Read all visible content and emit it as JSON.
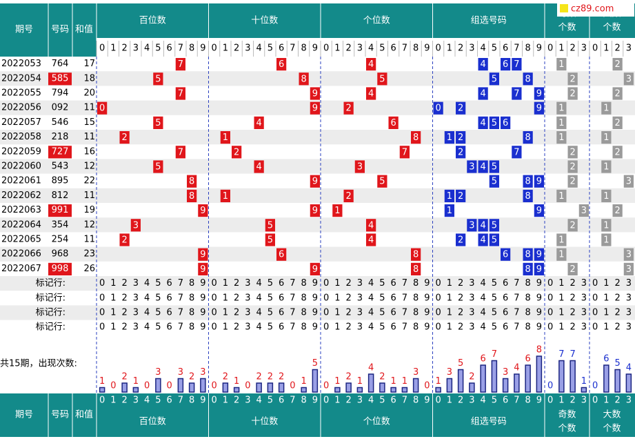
{
  "logo": "cz89.com",
  "header": {
    "issue": "期号",
    "number": "号码",
    "sum": "和值",
    "sections": [
      "百位数",
      "十位数",
      "个位数",
      "组选号码"
    ],
    "small_sections": [
      [
        "奇数",
        "个数"
      ],
      [
        "大数",
        "个数"
      ]
    ]
  },
  "digits": [
    0,
    1,
    2,
    3,
    4,
    5,
    6,
    7,
    8,
    9
  ],
  "digits4": [
    0,
    1,
    2,
    3
  ],
  "rows": [
    {
      "issue": "2022053",
      "number": "764",
      "sum": 17,
      "hundreds": 7,
      "tens": 6,
      "units": 4,
      "group": [
        4,
        6,
        7
      ],
      "odd": 1,
      "big": 2,
      "pair": false
    },
    {
      "issue": "2022054",
      "number": "585",
      "sum": 18,
      "hundreds": 5,
      "tens": 8,
      "units": 5,
      "group": [
        5,
        8
      ],
      "odd": 2,
      "big": 3,
      "pair": true
    },
    {
      "issue": "2022055",
      "number": "794",
      "sum": 20,
      "hundreds": 7,
      "tens": 9,
      "units": 4,
      "group": [
        4,
        7,
        9
      ],
      "odd": 2,
      "big": 2,
      "pair": false
    },
    {
      "issue": "2022056",
      "number": "092",
      "sum": 11,
      "hundreds": 0,
      "tens": 9,
      "units": 2,
      "group": [
        0,
        2,
        9
      ],
      "odd": 1,
      "big": 1,
      "pair": false
    },
    {
      "issue": "2022057",
      "number": "546",
      "sum": 15,
      "hundreds": 5,
      "tens": 4,
      "units": 6,
      "group": [
        4,
        5,
        6
      ],
      "odd": 1,
      "big": 2,
      "pair": false
    },
    {
      "issue": "2022058",
      "number": "218",
      "sum": 11,
      "hundreds": 2,
      "tens": 1,
      "units": 8,
      "group": [
        1,
        2,
        8
      ],
      "odd": 1,
      "big": 1,
      "pair": false
    },
    {
      "issue": "2022059",
      "number": "727",
      "sum": 16,
      "hundreds": 7,
      "tens": 2,
      "units": 7,
      "group": [
        2,
        7
      ],
      "odd": 2,
      "big": 2,
      "pair": true
    },
    {
      "issue": "2022060",
      "number": "543",
      "sum": 12,
      "hundreds": 5,
      "tens": 4,
      "units": 3,
      "group": [
        3,
        4,
        5
      ],
      "odd": 2,
      "big": 1,
      "pair": false
    },
    {
      "issue": "2022061",
      "number": "895",
      "sum": 22,
      "hundreds": 8,
      "tens": 9,
      "units": 5,
      "group": [
        5,
        8,
        9
      ],
      "odd": 2,
      "big": 3,
      "pair": false
    },
    {
      "issue": "2022062",
      "number": "812",
      "sum": 11,
      "hundreds": 8,
      "tens": 1,
      "units": 2,
      "group": [
        1,
        2,
        8
      ],
      "odd": 1,
      "big": 1,
      "pair": false
    },
    {
      "issue": "2022063",
      "number": "991",
      "sum": 19,
      "hundreds": 9,
      "tens": 9,
      "units": 1,
      "group": [
        1,
        9
      ],
      "odd": 3,
      "big": 2,
      "pair": true
    },
    {
      "issue": "2022064",
      "number": "354",
      "sum": 12,
      "hundreds": 3,
      "tens": 5,
      "units": 4,
      "group": [
        3,
        4,
        5
      ],
      "odd": 2,
      "big": 1,
      "pair": false
    },
    {
      "issue": "2022065",
      "number": "254",
      "sum": 11,
      "hundreds": 2,
      "tens": 5,
      "units": 4,
      "group": [
        2,
        4,
        5
      ],
      "odd": 1,
      "big": 1,
      "pair": false
    },
    {
      "issue": "2022066",
      "number": "968",
      "sum": 23,
      "hundreds": 9,
      "tens": 6,
      "units": 8,
      "group": [
        6,
        8,
        9
      ],
      "odd": 1,
      "big": 3,
      "pair": false
    },
    {
      "issue": "2022067",
      "number": "998",
      "sum": 26,
      "hundreds": 9,
      "tens": 9,
      "units": 8,
      "group": [
        8,
        9
      ],
      "odd": 2,
      "big": 3,
      "pair": true
    }
  ],
  "marker_label": "标记行:",
  "count_label": "共15期，出现次数:",
  "counts": {
    "hundreds": [
      1,
      0,
      2,
      1,
      0,
      3,
      0,
      3,
      2,
      3
    ],
    "tens": [
      0,
      2,
      1,
      0,
      2,
      2,
      2,
      0,
      1,
      5
    ],
    "units": [
      0,
      1,
      2,
      1,
      4,
      2,
      1,
      1,
      3,
      0
    ],
    "group": [
      1,
      3,
      5,
      2,
      6,
      7,
      3,
      4,
      6,
      8
    ],
    "odd": [
      0,
      7,
      7,
      1
    ],
    "big": [
      0,
      6,
      5,
      4
    ]
  }
}
